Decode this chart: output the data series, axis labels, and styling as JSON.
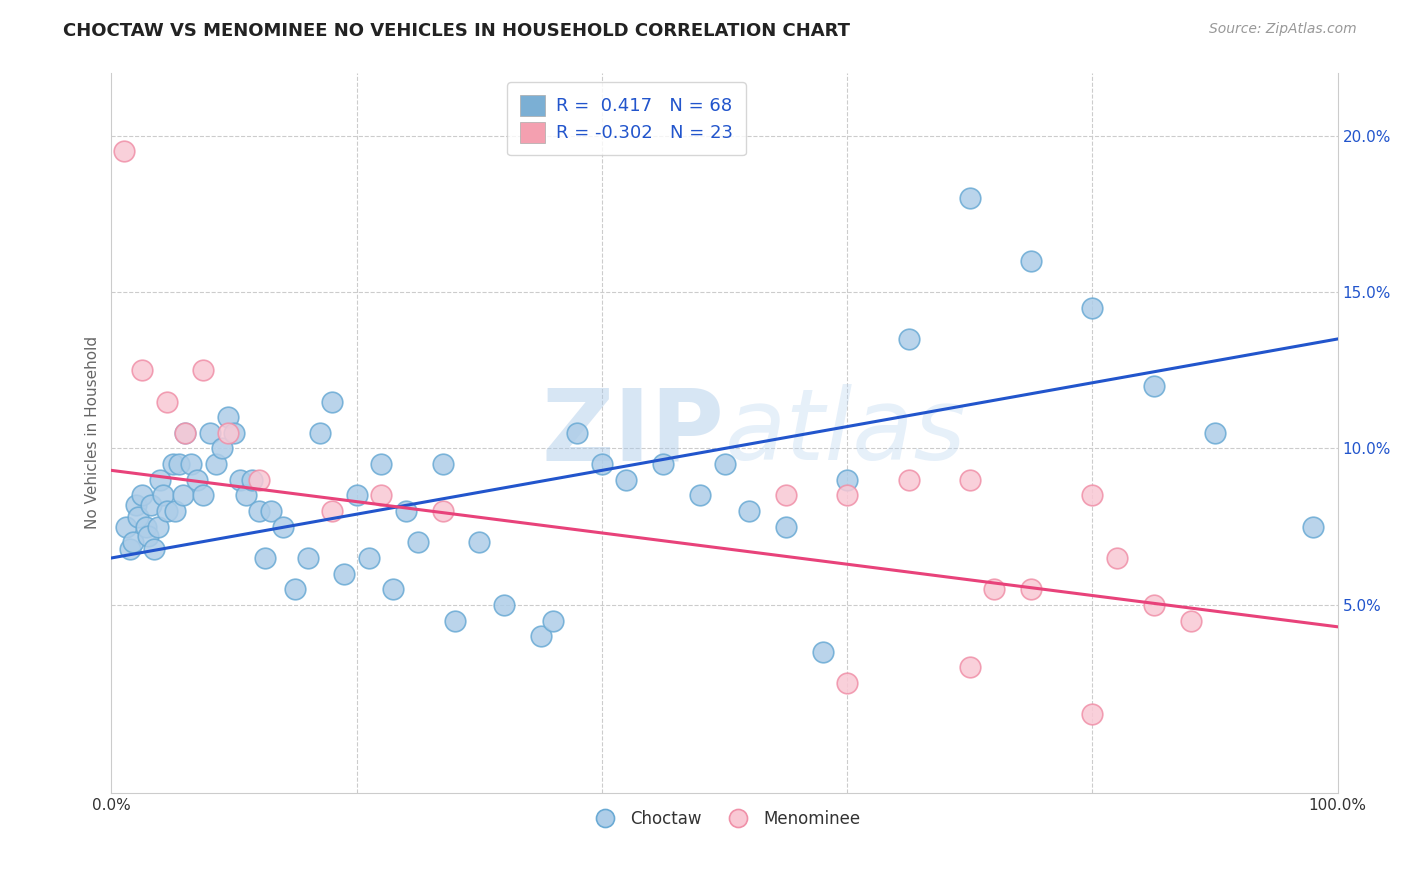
{
  "title": "CHOCTAW VS MENOMINEE NO VEHICLES IN HOUSEHOLD CORRELATION CHART",
  "source": "Source: ZipAtlas.com",
  "ylabel": "No Vehicles in Household",
  "xlim": [
    0,
    100
  ],
  "ylim": [
    -1,
    22
  ],
  "yticks": [
    5,
    10,
    15,
    20
  ],
  "ytick_labels": [
    "5.0%",
    "10.0%",
    "15.0%",
    "20.0%"
  ],
  "watermark": "ZIPatlas",
  "choctaw_R": 0.417,
  "choctaw_N": 68,
  "menominee_R": -0.302,
  "menominee_N": 23,
  "choctaw_dot_facecolor": "#aecde8",
  "choctaw_dot_edgecolor": "#6aaad4",
  "menominee_dot_facecolor": "#f9c8d4",
  "menominee_dot_edgecolor": "#f090a8",
  "choctaw_line_color": "#2255cc",
  "menominee_line_color": "#e8427a",
  "choctaw_legend_color": "#7bafd4",
  "menominee_legend_color": "#f4a0b0",
  "choctaw_x": [
    1.2,
    1.5,
    1.8,
    2.0,
    2.2,
    2.5,
    2.8,
    3.0,
    3.2,
    3.5,
    3.8,
    4.0,
    4.2,
    4.5,
    5.0,
    5.2,
    5.5,
    5.8,
    6.0,
    6.5,
    7.0,
    7.5,
    8.0,
    8.5,
    9.0,
    9.5,
    10.0,
    10.5,
    11.0,
    11.5,
    12.0,
    12.5,
    13.0,
    14.0,
    15.0,
    16.0,
    17.0,
    18.0,
    19.0,
    20.0,
    21.0,
    22.0,
    23.0,
    24.0,
    25.0,
    27.0,
    28.0,
    30.0,
    32.0,
    35.0,
    36.0,
    38.0,
    40.0,
    42.0,
    45.0,
    48.0,
    50.0,
    52.0,
    55.0,
    58.0,
    60.0,
    65.0,
    70.0,
    75.0,
    80.0,
    85.0,
    90.0,
    98.0
  ],
  "choctaw_y": [
    7.5,
    6.8,
    7.0,
    8.2,
    7.8,
    8.5,
    7.5,
    7.2,
    8.2,
    6.8,
    7.5,
    9.0,
    8.5,
    8.0,
    9.5,
    8.0,
    9.5,
    8.5,
    10.5,
    9.5,
    9.0,
    8.5,
    10.5,
    9.5,
    10.0,
    11.0,
    10.5,
    9.0,
    8.5,
    9.0,
    8.0,
    6.5,
    8.0,
    7.5,
    5.5,
    6.5,
    10.5,
    11.5,
    6.0,
    8.5,
    6.5,
    9.5,
    5.5,
    8.0,
    7.0,
    9.5,
    4.5,
    7.0,
    5.0,
    4.0,
    4.5,
    10.5,
    9.5,
    9.0,
    9.5,
    8.5,
    9.5,
    8.0,
    7.5,
    3.5,
    9.0,
    13.5,
    18.0,
    16.0,
    14.5,
    12.0,
    10.5,
    7.5
  ],
  "menominee_x": [
    1.0,
    2.5,
    4.5,
    6.0,
    7.5,
    9.5,
    12.0,
    18.0,
    22.0,
    27.0,
    55.0,
    60.0,
    65.0,
    70.0,
    72.0,
    75.0,
    80.0,
    82.0,
    85.0,
    88.0,
    60.0,
    70.0,
    80.0
  ],
  "menominee_y": [
    19.5,
    12.5,
    11.5,
    10.5,
    12.5,
    10.5,
    9.0,
    8.0,
    8.5,
    8.0,
    8.5,
    8.5,
    9.0,
    9.0,
    5.5,
    5.5,
    8.5,
    6.5,
    5.0,
    4.5,
    2.5,
    3.0,
    1.5
  ],
  "choctaw_line_x": [
    0,
    100
  ],
  "choctaw_line_y": [
    6.5,
    13.5
  ],
  "menominee_line_x": [
    0,
    100
  ],
  "menominee_line_y": [
    9.3,
    4.3
  ],
  "background_color": "#ffffff",
  "grid_color": "#cccccc",
  "label_text_color": "#2255cc"
}
